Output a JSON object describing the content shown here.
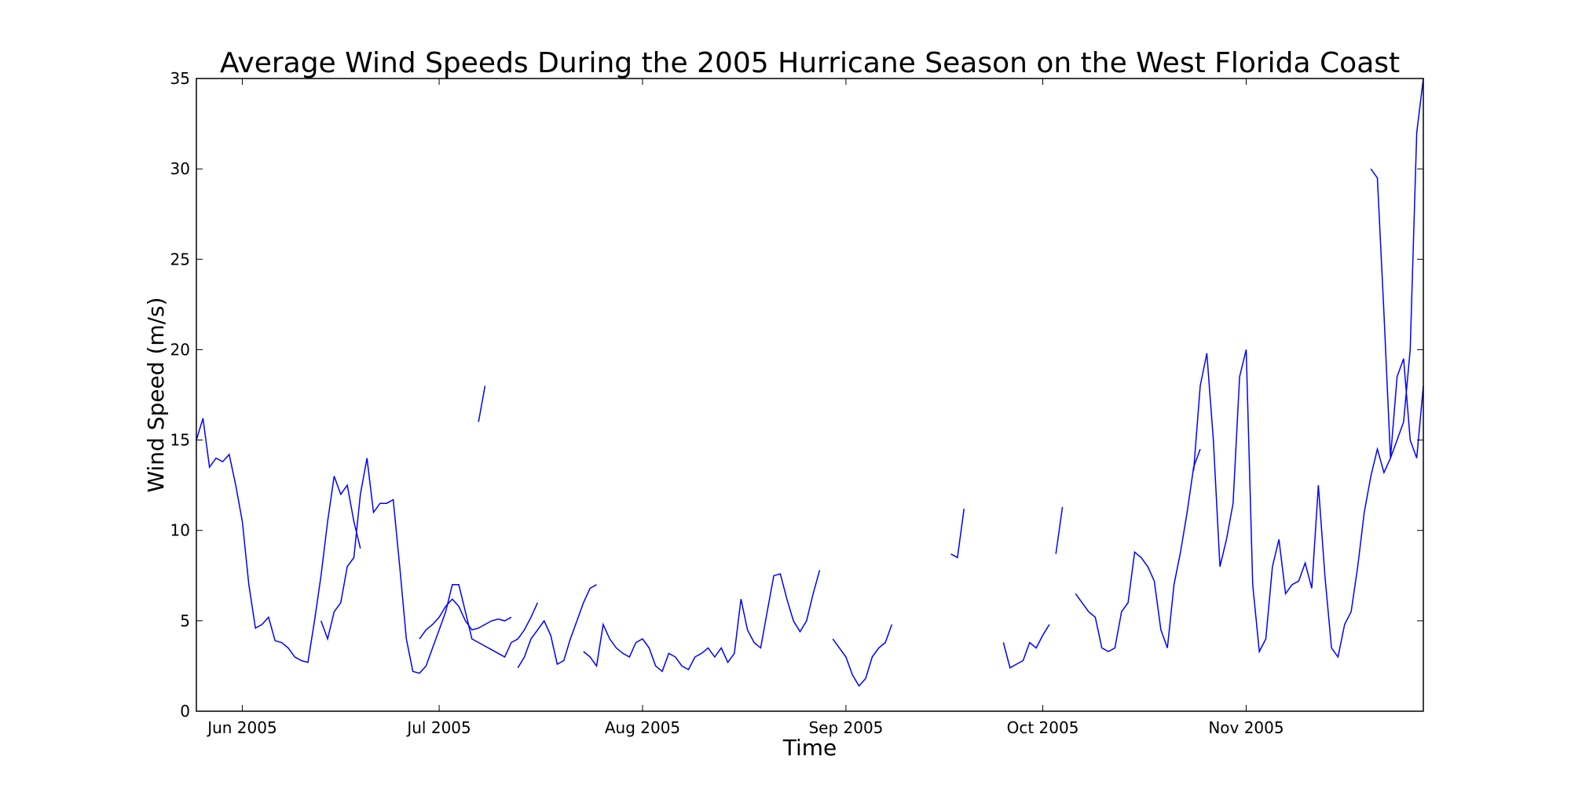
{
  "chart_data": {
    "type": "line",
    "title": "Average Wind Speeds During the 2005 Hurricane Season on the West Florida Coast",
    "xlabel": "Time",
    "ylabel": "Wind Speed (m/s)",
    "xlim": [
      "2005-05-25",
      "2005-11-28"
    ],
    "ylim": [
      0,
      35
    ],
    "x_ticks": [
      {
        "date": "2005-06-01",
        "label": "Jun 2005"
      },
      {
        "date": "2005-07-01",
        "label": "Jul 2005"
      },
      {
        "date": "2005-08-01",
        "label": "Aug 2005"
      },
      {
        "date": "2005-09-01",
        "label": "Sep 2005"
      },
      {
        "date": "2005-10-01",
        "label": "Oct 2005"
      },
      {
        "date": "2005-11-01",
        "label": "Nov 2005"
      }
    ],
    "y_ticks": [
      0,
      5,
      10,
      15,
      20,
      25,
      30,
      35
    ],
    "grid": false,
    "series": [
      {
        "color": "#0000ff",
        "segments": [
          {
            "x": [
              "2005-05-25",
              "2005-05-26",
              "2005-05-27",
              "2005-05-28",
              "2005-05-29",
              "2005-05-30",
              "2005-05-31",
              "2005-06-01",
              "2005-06-02",
              "2005-06-03",
              "2005-06-04",
              "2005-06-05",
              "2005-06-06",
              "2005-06-07",
              "2005-06-08",
              "2005-06-09",
              "2005-06-10",
              "2005-06-11",
              "2005-06-12",
              "2005-06-13",
              "2005-06-14",
              "2005-06-15",
              "2005-06-16",
              "2005-06-17",
              "2005-06-18",
              "2005-06-19"
            ],
            "y": [
              15.0,
              16.2,
              13.5,
              14.0,
              13.8,
              14.2,
              12.5,
              10.5,
              7.0,
              4.6,
              4.8,
              5.2,
              3.9,
              3.8,
              3.5,
              3.0,
              2.8,
              2.7,
              5.0,
              7.5,
              10.5,
              13.0,
              12.0,
              12.5,
              10.5,
              9.0
            ]
          },
          {
            "x": [
              "2005-06-13",
              "2005-06-14",
              "2005-06-15",
              "2005-06-16",
              "2005-06-17",
              "2005-06-18",
              "2005-06-19",
              "2005-06-20",
              "2005-06-21",
              "2005-06-22",
              "2005-06-23",
              "2005-06-24",
              "2005-06-25",
              "2005-06-26",
              "2005-06-27",
              "2005-06-28",
              "2005-06-29",
              "2005-06-30",
              "2005-07-01",
              "2005-07-02",
              "2005-07-03",
              "2005-07-04",
              "2005-07-05",
              "2005-07-06",
              "2005-07-07",
              "2005-07-08",
              "2005-07-09",
              "2005-07-10",
              "2005-07-11",
              "2005-07-12",
              "2005-07-13",
              "2005-07-14",
              "2005-07-15",
              "2005-07-16"
            ],
            "y": [
              5.0,
              4.0,
              5.5,
              6.0,
              8.0,
              8.5,
              12.0,
              14.0,
              11.0,
              11.5,
              11.5,
              11.7,
              8.0,
              4.0,
              2.2,
              2.1,
              2.5,
              3.5,
              4.5,
              5.5,
              7.0,
              7.0,
              5.5,
              4.0,
              3.8,
              3.6,
              3.4,
              3.2,
              3.0,
              3.8,
              4.0,
              4.5,
              5.2,
              6.0
            ]
          },
          {
            "x": [
              "2005-06-28",
              "2005-06-29",
              "2005-06-30",
              "2005-07-01",
              "2005-07-02",
              "2005-07-03",
              "2005-07-04",
              "2005-07-05",
              "2005-07-06",
              "2005-07-07",
              "2005-07-08",
              "2005-07-09",
              "2005-07-10",
              "2005-07-11",
              "2005-07-12"
            ],
            "y": [
              4.0,
              4.5,
              4.8,
              5.2,
              5.8,
              6.2,
              5.8,
              5.0,
              4.5,
              4.6,
              4.8,
              5.0,
              5.1,
              5.0,
              5.2
            ]
          },
          {
            "x": [
              "2005-07-07",
              "2005-07-08"
            ],
            "y": [
              16.0,
              18.0
            ]
          },
          {
            "x": [
              "2005-07-13",
              "2005-07-14",
              "2005-07-15",
              "2005-07-16",
              "2005-07-17",
              "2005-07-18",
              "2005-07-19",
              "2005-07-20",
              "2005-07-21",
              "2005-07-22",
              "2005-07-23",
              "2005-07-24",
              "2005-07-25"
            ],
            "y": [
              2.4,
              3.0,
              4.0,
              4.5,
              5.0,
              4.2,
              2.6,
              2.8,
              4.0,
              5.0,
              6.0,
              6.8,
              7.0
            ]
          },
          {
            "x": [
              "2005-07-23",
              "2005-07-24",
              "2005-07-25",
              "2005-07-26",
              "2005-07-27",
              "2005-07-28",
              "2005-07-29",
              "2005-07-30",
              "2005-07-31",
              "2005-08-01",
              "2005-08-02",
              "2005-08-03",
              "2005-08-04",
              "2005-08-05",
              "2005-08-06",
              "2005-08-07",
              "2005-08-08",
              "2005-08-09",
              "2005-08-10",
              "2005-08-11",
              "2005-08-12",
              "2005-08-13",
              "2005-08-14",
              "2005-08-15",
              "2005-08-16",
              "2005-08-17",
              "2005-08-18",
              "2005-08-19",
              "2005-08-20",
              "2005-08-21",
              "2005-08-22",
              "2005-08-23",
              "2005-08-24",
              "2005-08-25",
              "2005-08-26",
              "2005-08-27",
              "2005-08-28"
            ],
            "y": [
              3.3,
              3.0,
              2.5,
              4.8,
              4.0,
              3.5,
              3.2,
              3.0,
              3.8,
              4.0,
              3.5,
              2.5,
              2.2,
              3.2,
              3.0,
              2.5,
              2.3,
              3.0,
              3.2,
              3.5,
              3.0,
              3.5,
              2.7,
              3.2,
              6.2,
              4.5,
              3.8,
              3.5,
              5.5,
              7.5,
              7.6,
              6.2,
              5.0,
              4.4,
              5.0,
              6.5,
              7.8
            ]
          },
          {
            "x": [
              "2005-08-30",
              "2005-08-31",
              "2005-09-01",
              "2005-09-02",
              "2005-09-03",
              "2005-09-04",
              "2005-09-05",
              "2005-09-06",
              "2005-09-07",
              "2005-09-08"
            ],
            "y": [
              4.0,
              3.5,
              3.0,
              2.0,
              1.4,
              1.8,
              3.0,
              3.5,
              3.8,
              4.8
            ]
          },
          {
            "x": [
              "2005-09-17",
              "2005-09-18",
              "2005-09-19"
            ],
            "y": [
              8.7,
              8.5,
              11.2
            ]
          },
          {
            "x": [
              "2005-09-25",
              "2005-09-26",
              "2005-09-27",
              "2005-09-28",
              "2005-09-29",
              "2005-09-30",
              "2005-10-01",
              "2005-10-02"
            ],
            "y": [
              3.8,
              2.4,
              2.6,
              2.8,
              3.8,
              3.5,
              4.2,
              4.8
            ]
          },
          {
            "x": [
              "2005-10-03",
              "2005-10-04"
            ],
            "y": [
              8.7,
              11.3
            ]
          },
          {
            "x": [
              "2005-10-06",
              "2005-10-07",
              "2005-10-08",
              "2005-10-09",
              "2005-10-10",
              "2005-10-11",
              "2005-10-12",
              "2005-10-13",
              "2005-10-14",
              "2005-10-15",
              "2005-10-16",
              "2005-10-17",
              "2005-10-18",
              "2005-10-19",
              "2005-10-20",
              "2005-10-21",
              "2005-10-22",
              "2005-10-23",
              "2005-10-24",
              "2005-10-25"
            ],
            "y": [
              6.5,
              6.0,
              5.5,
              5.2,
              3.5,
              3.3,
              3.5,
              5.5,
              6.0,
              8.8,
              8.5,
              8.0,
              7.2,
              4.5,
              3.5,
              7.0,
              8.8,
              11.0,
              13.5,
              14.5
            ]
          },
          {
            "x": [
              "2005-10-24",
              "2005-10-25",
              "2005-10-26",
              "2005-10-27",
              "2005-10-28",
              "2005-10-29",
              "2005-10-30",
              "2005-10-31",
              "2005-11-01",
              "2005-11-02",
              "2005-11-03",
              "2005-11-04",
              "2005-11-05",
              "2005-11-06",
              "2005-11-07",
              "2005-11-08",
              "2005-11-09",
              "2005-11-10",
              "2005-11-11",
              "2005-11-12",
              "2005-11-13",
              "2005-11-14",
              "2005-11-15",
              "2005-11-16",
              "2005-11-17",
              "2005-11-18",
              "2005-11-19",
              "2005-11-20",
              "2005-11-21",
              "2005-11-22",
              "2005-11-23",
              "2005-11-24",
              "2005-11-25",
              "2005-11-26",
              "2005-11-27",
              "2005-11-28"
            ],
            "y": [
              13.3,
              18.0,
              19.8,
              15.0,
              8.0,
              9.5,
              11.5,
              18.5,
              20.0,
              7.0,
              3.3,
              4.0,
              8.0,
              9.5,
              6.5,
              7.0,
              7.2,
              8.2,
              6.8,
              12.5,
              7.5,
              3.5,
              3.0,
              4.8,
              5.5,
              8.0,
              11.0,
              13.0,
              14.5,
              13.2,
              14.0,
              15.0,
              16.0,
              20.0,
              32.0,
              35.0
            ]
          },
          {
            "x": [
              "2005-11-20",
              "2005-11-21",
              "2005-11-22",
              "2005-11-23",
              "2005-11-24",
              "2005-11-25",
              "2005-11-26",
              "2005-11-27",
              "2005-11-28"
            ],
            "y": [
              30.0,
              29.5,
              22.0,
              14.0,
              18.5,
              19.5,
              15.0,
              14.0,
              18.0
            ]
          }
        ]
      }
    ]
  }
}
